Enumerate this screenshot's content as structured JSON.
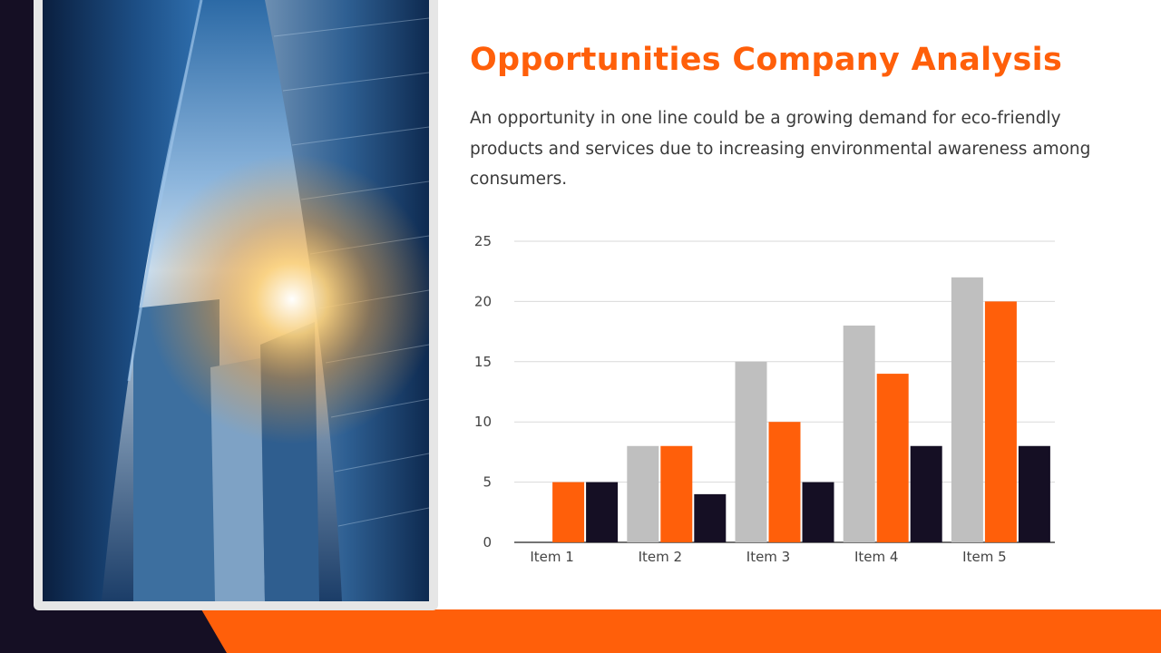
{
  "slide": {
    "title": "Opportunities Company Analysis",
    "description": "An opportunity in one line could be a growing demand for eco-friendly products and services due to increasing environmental awareness among consumers."
  },
  "colors": {
    "accent": "#ff5f0a",
    "dark": "#150f24",
    "gray": "#bfbfbf"
  },
  "chart_data": {
    "type": "bar",
    "title": "",
    "xlabel": "",
    "ylabel": "",
    "categories": [
      "Item 1",
      "Item 2",
      "Item 3",
      "Item 4",
      "Item 5"
    ],
    "series": [
      {
        "color": "#bfbfbf",
        "values": [
          0,
          8,
          15,
          18,
          22
        ]
      },
      {
        "color": "#ff5f0a",
        "values": [
          5,
          8,
          10,
          14,
          20
        ]
      },
      {
        "color": "#150f24",
        "values": [
          5,
          4,
          5,
          8,
          8
        ]
      }
    ],
    "ylim": [
      0,
      25
    ],
    "yticks": [
      0,
      5,
      10,
      15,
      20,
      25
    ],
    "grid": true,
    "legend": "none"
  }
}
